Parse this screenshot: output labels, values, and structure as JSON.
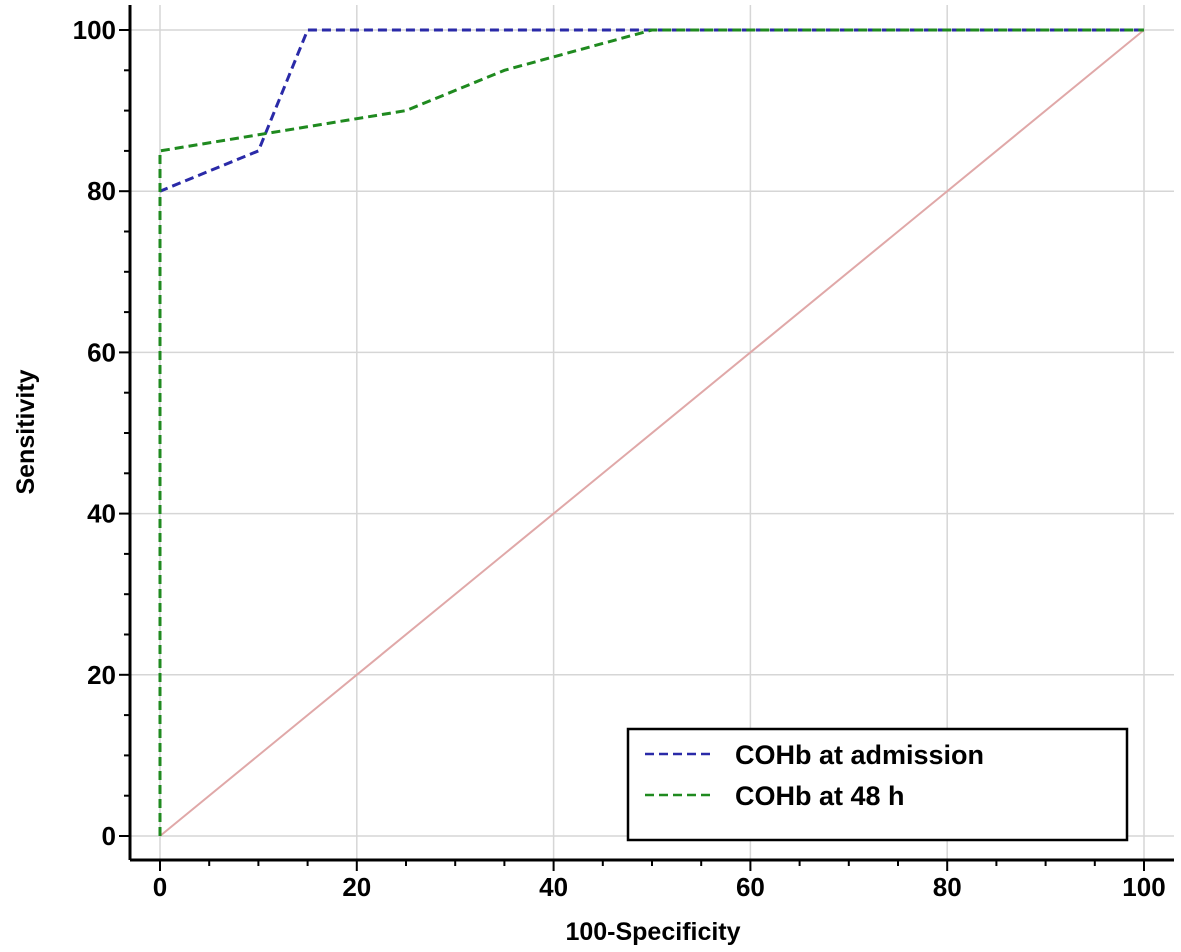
{
  "chart_data": {
    "type": "line",
    "title": "",
    "xlabel": "100-Specificity",
    "ylabel": "Sensitivity",
    "xlim": [
      0,
      100
    ],
    "ylim": [
      0,
      100
    ],
    "x_ticks": [
      0,
      20,
      40,
      60,
      80,
      100
    ],
    "y_ticks": [
      0,
      20,
      40,
      60,
      80,
      100
    ],
    "grid": true,
    "legend_position": "bottom-right",
    "series": [
      {
        "name": "COHb at admission",
        "color": "#2a2aa8",
        "style": "dashed",
        "x": [
          0,
          0,
          10,
          15,
          50,
          100
        ],
        "y": [
          0,
          80,
          85,
          100,
          100,
          100
        ]
      },
      {
        "name": "COHb at 48 h",
        "color": "#1f8a1f",
        "style": "dashed",
        "x": [
          0,
          0,
          25,
          35,
          50,
          100
        ],
        "y": [
          0,
          85,
          90,
          95,
          100,
          100
        ]
      }
    ],
    "reference_line": {
      "color": "#e0a8a8",
      "x": [
        0,
        100
      ],
      "y": [
        0,
        100
      ]
    }
  }
}
